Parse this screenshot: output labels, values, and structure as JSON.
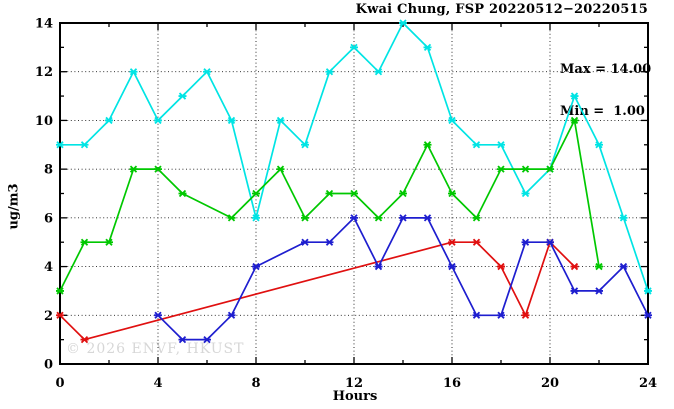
{
  "title": "Kwai Chung, FSP 20220512−20220515",
  "watermark": "© 2026 ENVF, HKUST",
  "legend": {
    "max_label": "Max = 14.00",
    "min_label": "Min =  1.00"
  },
  "chart_data": {
    "type": "line",
    "title": "Kwai Chung, FSP 20220512−20220515",
    "xlabel": "Hours",
    "ylabel": "ug/m3",
    "xlim": [
      0,
      24
    ],
    "ylim": [
      0,
      14
    ],
    "xticks_major": [
      0,
      4,
      8,
      12,
      16,
      20,
      24
    ],
    "xticks_minor": [
      2,
      6,
      10,
      14,
      18,
      22
    ],
    "yticks_major": [
      0,
      2,
      4,
      6,
      8,
      10,
      12,
      14
    ],
    "yticks_minor": [
      1,
      3,
      5,
      7,
      9,
      11,
      13
    ],
    "grid_x": [
      4,
      8,
      12,
      16,
      20
    ],
    "grid_y": [
      2,
      4,
      6,
      8,
      10,
      12
    ],
    "grid": true,
    "legend_position": "top-right",
    "stats": {
      "max": 14.0,
      "min": 1.0
    },
    "series": [
      {
        "name": "series-cyan",
        "color": "#00E4E4",
        "points": [
          [
            0,
            9
          ],
          [
            1,
            9
          ],
          [
            2,
            10
          ],
          [
            3,
            12
          ],
          [
            4,
            10
          ],
          [
            5,
            11
          ],
          [
            6,
            12
          ],
          [
            7,
            10
          ],
          [
            8,
            6
          ],
          [
            9,
            10
          ],
          [
            10,
            9
          ],
          [
            11,
            12
          ],
          [
            12,
            13
          ],
          [
            13,
            12
          ],
          [
            14,
            14
          ],
          [
            15,
            13
          ],
          [
            16,
            10
          ],
          [
            17,
            9
          ],
          [
            18,
            9
          ],
          [
            19,
            7
          ],
          [
            20,
            8
          ],
          [
            21,
            11
          ],
          [
            22,
            9
          ],
          [
            23,
            6
          ],
          [
            24,
            3
          ]
        ]
      },
      {
        "name": "series-green",
        "color": "#00C800",
        "points": [
          [
            0,
            3
          ],
          [
            1,
            5
          ],
          [
            2,
            5
          ],
          [
            3,
            8
          ],
          [
            4,
            8
          ],
          [
            5,
            7
          ],
          [
            7,
            6
          ],
          [
            8,
            7
          ],
          [
            9,
            8
          ],
          [
            10,
            6
          ],
          [
            11,
            7
          ],
          [
            12,
            7
          ],
          [
            13,
            6
          ],
          [
            14,
            7
          ],
          [
            15,
            9
          ],
          [
            16,
            7
          ],
          [
            17,
            6
          ],
          [
            18,
            8
          ],
          [
            19,
            8
          ],
          [
            20,
            8
          ],
          [
            21,
            10
          ],
          [
            22,
            4
          ]
        ]
      },
      {
        "name": "series-red",
        "color": "#E01010",
        "points": [
          [
            0,
            2
          ],
          [
            1,
            1
          ],
          [
            16,
            5
          ],
          [
            17,
            5
          ],
          [
            18,
            4
          ],
          [
            19,
            2
          ],
          [
            20,
            5
          ],
          [
            21,
            4
          ]
        ]
      },
      {
        "name": "series-blue",
        "color": "#1E1ECF",
        "points": [
          [
            4,
            2
          ],
          [
            5,
            1
          ],
          [
            6,
            1
          ],
          [
            7,
            2
          ],
          [
            8,
            4
          ],
          [
            10,
            5
          ],
          [
            11,
            5
          ],
          [
            12,
            6
          ],
          [
            13,
            4
          ],
          [
            14,
            6
          ],
          [
            15,
            6
          ],
          [
            16,
            4
          ],
          [
            17,
            2
          ],
          [
            18,
            2
          ],
          [
            19,
            5
          ],
          [
            20,
            5
          ],
          [
            21,
            3
          ],
          [
            22,
            3
          ],
          [
            23,
            4
          ],
          [
            24,
            2
          ]
        ]
      }
    ]
  }
}
